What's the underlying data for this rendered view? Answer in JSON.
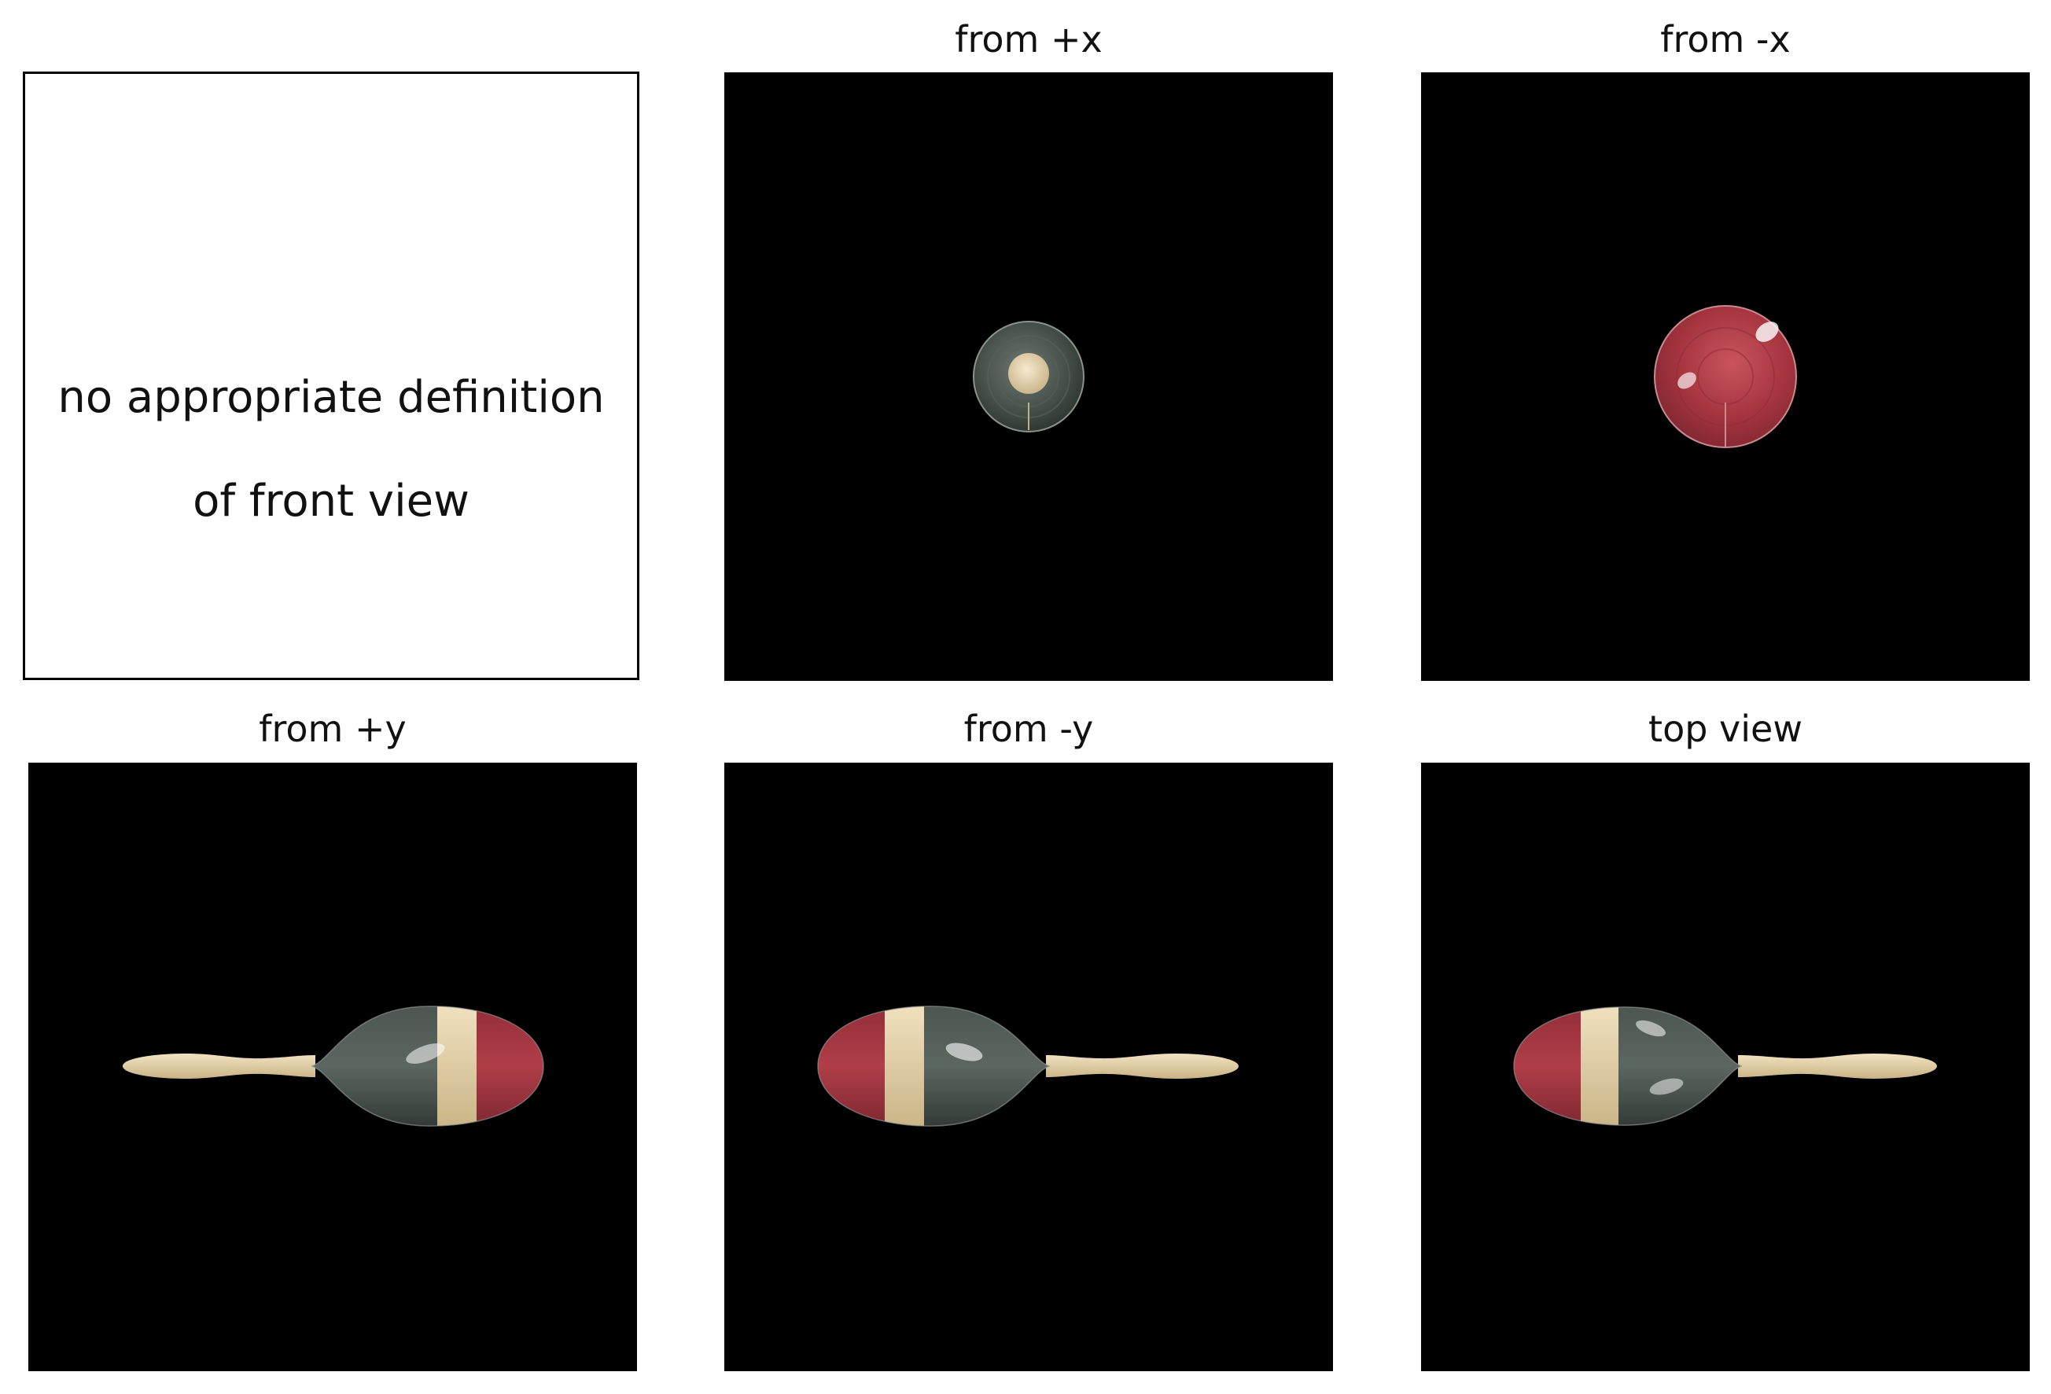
{
  "front_view": {
    "message_line1": "no appropriate definition",
    "message_line2": "of front view"
  },
  "views": {
    "plus_x": {
      "title": "from +x"
    },
    "minus_x": {
      "title": "from -x"
    },
    "plus_y": {
      "title": "from +y"
    },
    "minus_y": {
      "title": "from -y"
    },
    "top": {
      "title": "top view"
    }
  },
  "colors": {
    "background": "#000000",
    "wood": "#e3cfa6",
    "gray_body": "#3f4743",
    "red_cap": "#a5343f"
  }
}
